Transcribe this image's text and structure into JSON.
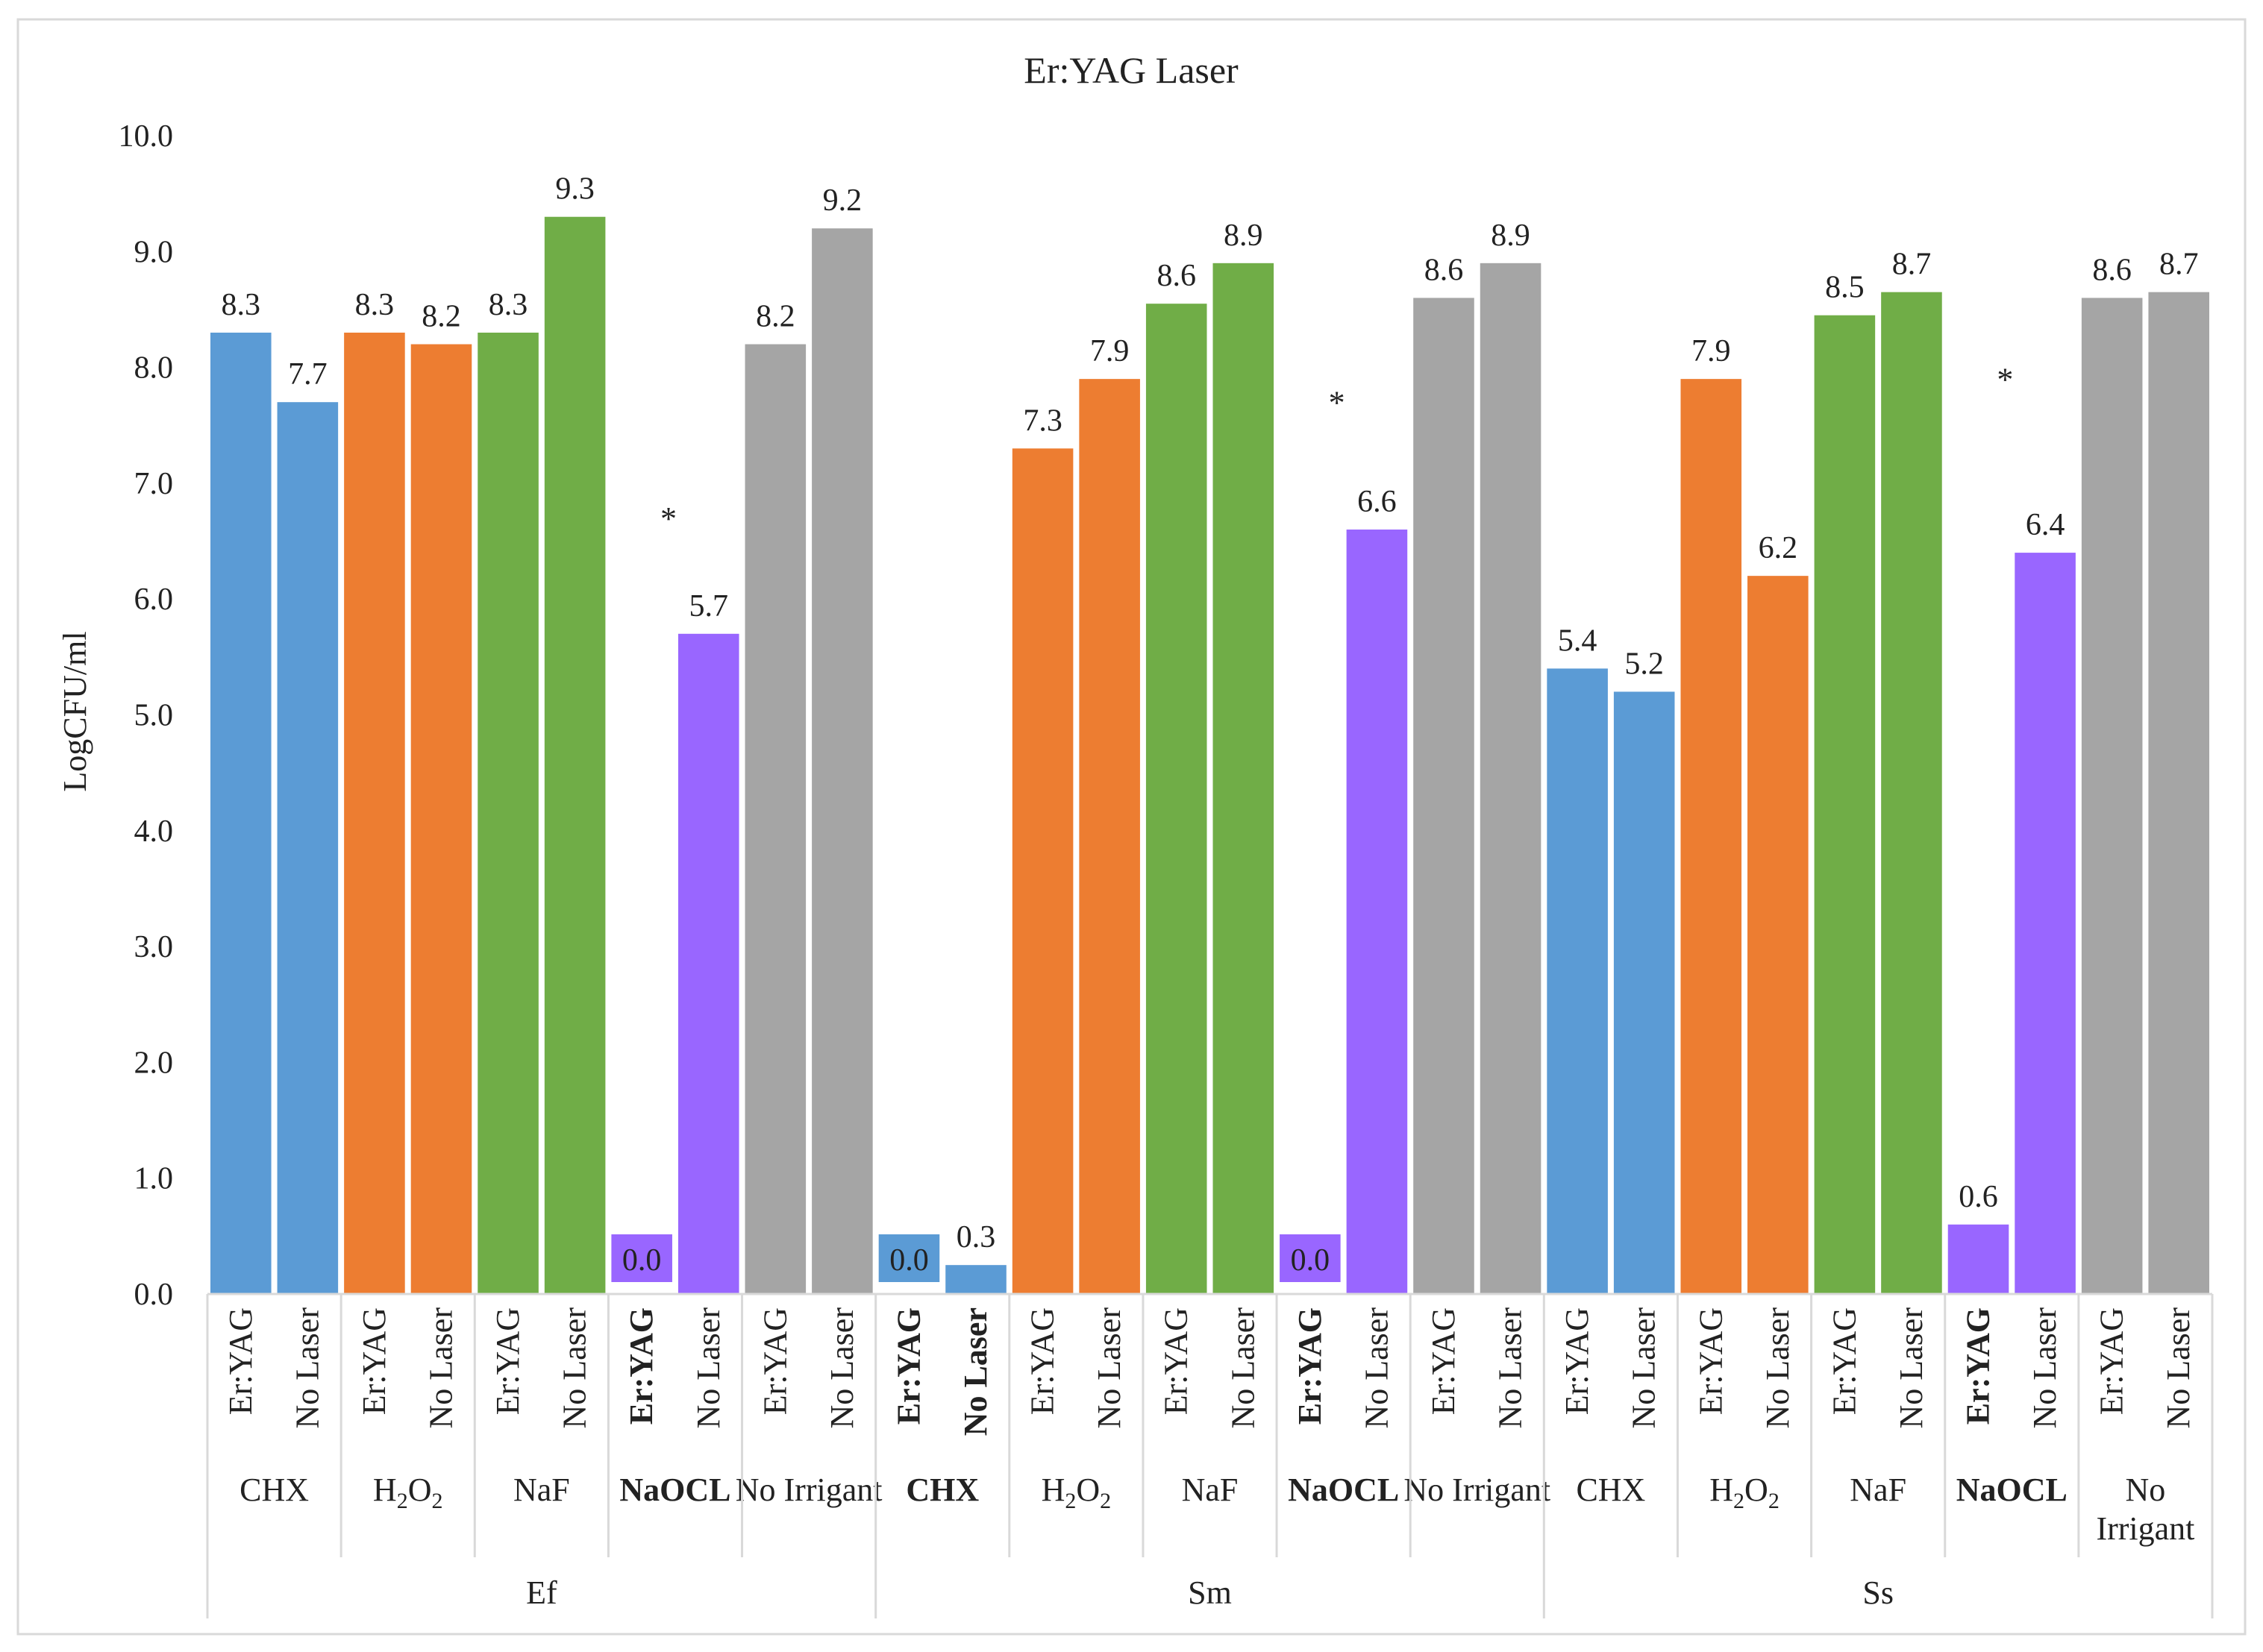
{
  "chart_data": {
    "type": "bar",
    "title": "Er:YAG Laser",
    "ylabel": "LogCFU/ml",
    "xlabel": "",
    "ylim": [
      0,
      10
    ],
    "yticks": [
      "0.0",
      "1.0",
      "2.0",
      "3.0",
      "4.0",
      "5.0",
      "6.0",
      "7.0",
      "8.0",
      "9.0",
      "10.0"
    ],
    "colors": {
      "CHX": "#5b9bd5",
      "H2O2": "#ed7d31",
      "NaF": "#70ad47",
      "NaOCL": "#9966ff",
      "No Irrigant": "#a5a5a5"
    },
    "organisms": [
      {
        "name": "Ef",
        "groups": [
          {
            "key": "CHX",
            "label": "CHX",
            "bold": false,
            "bars": [
              {
                "treatment": "Er:YAG",
                "value": 8.3,
                "label": "8.3",
                "bold": false
              },
              {
                "treatment": "No Laser",
                "value": 7.7,
                "label": "7.7",
                "bold": false
              }
            ]
          },
          {
            "key": "H2O2",
            "label": "H2O2",
            "bold": false,
            "bars": [
              {
                "treatment": "Er:YAG",
                "value": 8.3,
                "label": "8.3",
                "bold": false
              },
              {
                "treatment": "No Laser",
                "value": 8.2,
                "label": "8.2",
                "bold": false
              }
            ]
          },
          {
            "key": "NaF",
            "label": "NaF",
            "bold": false,
            "bars": [
              {
                "treatment": "Er:YAG",
                "value": 8.3,
                "label": "8.3",
                "bold": false
              },
              {
                "treatment": "No Laser",
                "value": 9.3,
                "label": "9.3",
                "bold": false
              }
            ]
          },
          {
            "key": "NaOCL",
            "label": "NaOCL",
            "bold": true,
            "star": "*",
            "bars": [
              {
                "treatment": "Er:YAG",
                "value": 0.0,
                "label": "0.0",
                "bold": true
              },
              {
                "treatment": "No Laser",
                "value": 5.7,
                "label": "5.7",
                "bold": false
              }
            ]
          },
          {
            "key": "No Irrigant",
            "label": "No Irrigant",
            "bold": false,
            "bars": [
              {
                "treatment": "Er:YAG",
                "value": 8.2,
                "label": "8.2",
                "bold": false
              },
              {
                "treatment": "No Laser",
                "value": 9.2,
                "label": "9.2",
                "bold": false
              }
            ]
          }
        ]
      },
      {
        "name": "Sm",
        "groups": [
          {
            "key": "CHX",
            "label": "CHX",
            "bold": true,
            "bars": [
              {
                "treatment": "Er:YAG",
                "value": 0.0,
                "label": "0.0",
                "bold": true
              },
              {
                "treatment": "No Laser",
                "value": 0.25,
                "label": "0.3",
                "bold": true
              }
            ]
          },
          {
            "key": "H2O2",
            "label": "H2O2",
            "bold": false,
            "bars": [
              {
                "treatment": "Er:YAG",
                "value": 7.3,
                "label": "7.3",
                "bold": false
              },
              {
                "treatment": "No Laser",
                "value": 7.9,
                "label": "7.9",
                "bold": false
              }
            ]
          },
          {
            "key": "NaF",
            "label": "NaF",
            "bold": false,
            "bars": [
              {
                "treatment": "Er:YAG",
                "value": 8.55,
                "label": "8.6",
                "bold": false
              },
              {
                "treatment": "No Laser",
                "value": 8.9,
                "label": "8.9",
                "bold": false
              }
            ]
          },
          {
            "key": "NaOCL",
            "label": "NaOCL",
            "bold": true,
            "star": "*",
            "bars": [
              {
                "treatment": "Er:YAG",
                "value": 0.0,
                "label": "0.0",
                "bold": true
              },
              {
                "treatment": "No Laser",
                "value": 6.6,
                "label": "6.6",
                "bold": false
              }
            ]
          },
          {
            "key": "No Irrigant",
            "label": "No Irrigant",
            "bold": false,
            "bars": [
              {
                "treatment": "Er:YAG",
                "value": 8.6,
                "label": "8.6",
                "bold": false
              },
              {
                "treatment": "No Laser",
                "value": 8.9,
                "label": "8.9",
                "bold": false
              }
            ]
          }
        ]
      },
      {
        "name": "Ss",
        "groups": [
          {
            "key": "CHX",
            "label": "CHX",
            "bold": false,
            "bars": [
              {
                "treatment": "Er:YAG",
                "value": 5.4,
                "label": "5.4",
                "bold": false
              },
              {
                "treatment": "No Laser",
                "value": 5.2,
                "label": "5.2",
                "bold": false
              }
            ]
          },
          {
            "key": "H2O2",
            "label": "H2O2",
            "bold": false,
            "bars": [
              {
                "treatment": "Er:YAG",
                "value": 7.9,
                "label": "7.9",
                "bold": false
              },
              {
                "treatment": "No Laser",
                "value": 6.2,
                "label": "6.2",
                "bold": false
              }
            ]
          },
          {
            "key": "NaF",
            "label": "NaF",
            "bold": false,
            "bars": [
              {
                "treatment": "Er:YAG",
                "value": 8.45,
                "label": "8.5",
                "bold": false
              },
              {
                "treatment": "No Laser",
                "value": 8.65,
                "label": "8.7",
                "bold": false
              }
            ]
          },
          {
            "key": "NaOCL",
            "label": "NaOCL",
            "bold": true,
            "star": "*",
            "bars": [
              {
                "treatment": "Er:YAG",
                "value": 0.6,
                "label": "0.6",
                "bold": true
              },
              {
                "treatment": "No Laser",
                "value": 6.4,
                "label": "6.4",
                "bold": false
              }
            ]
          },
          {
            "key": "No Irrigant",
            "label": "No Irrigant",
            "bold": false,
            "bars": [
              {
                "treatment": "Er:YAG",
                "value": 8.6,
                "label": "8.6",
                "bold": false
              },
              {
                "treatment": "No Laser",
                "value": 8.65,
                "label": "8.7",
                "bold": false
              }
            ]
          }
        ]
      }
    ]
  }
}
